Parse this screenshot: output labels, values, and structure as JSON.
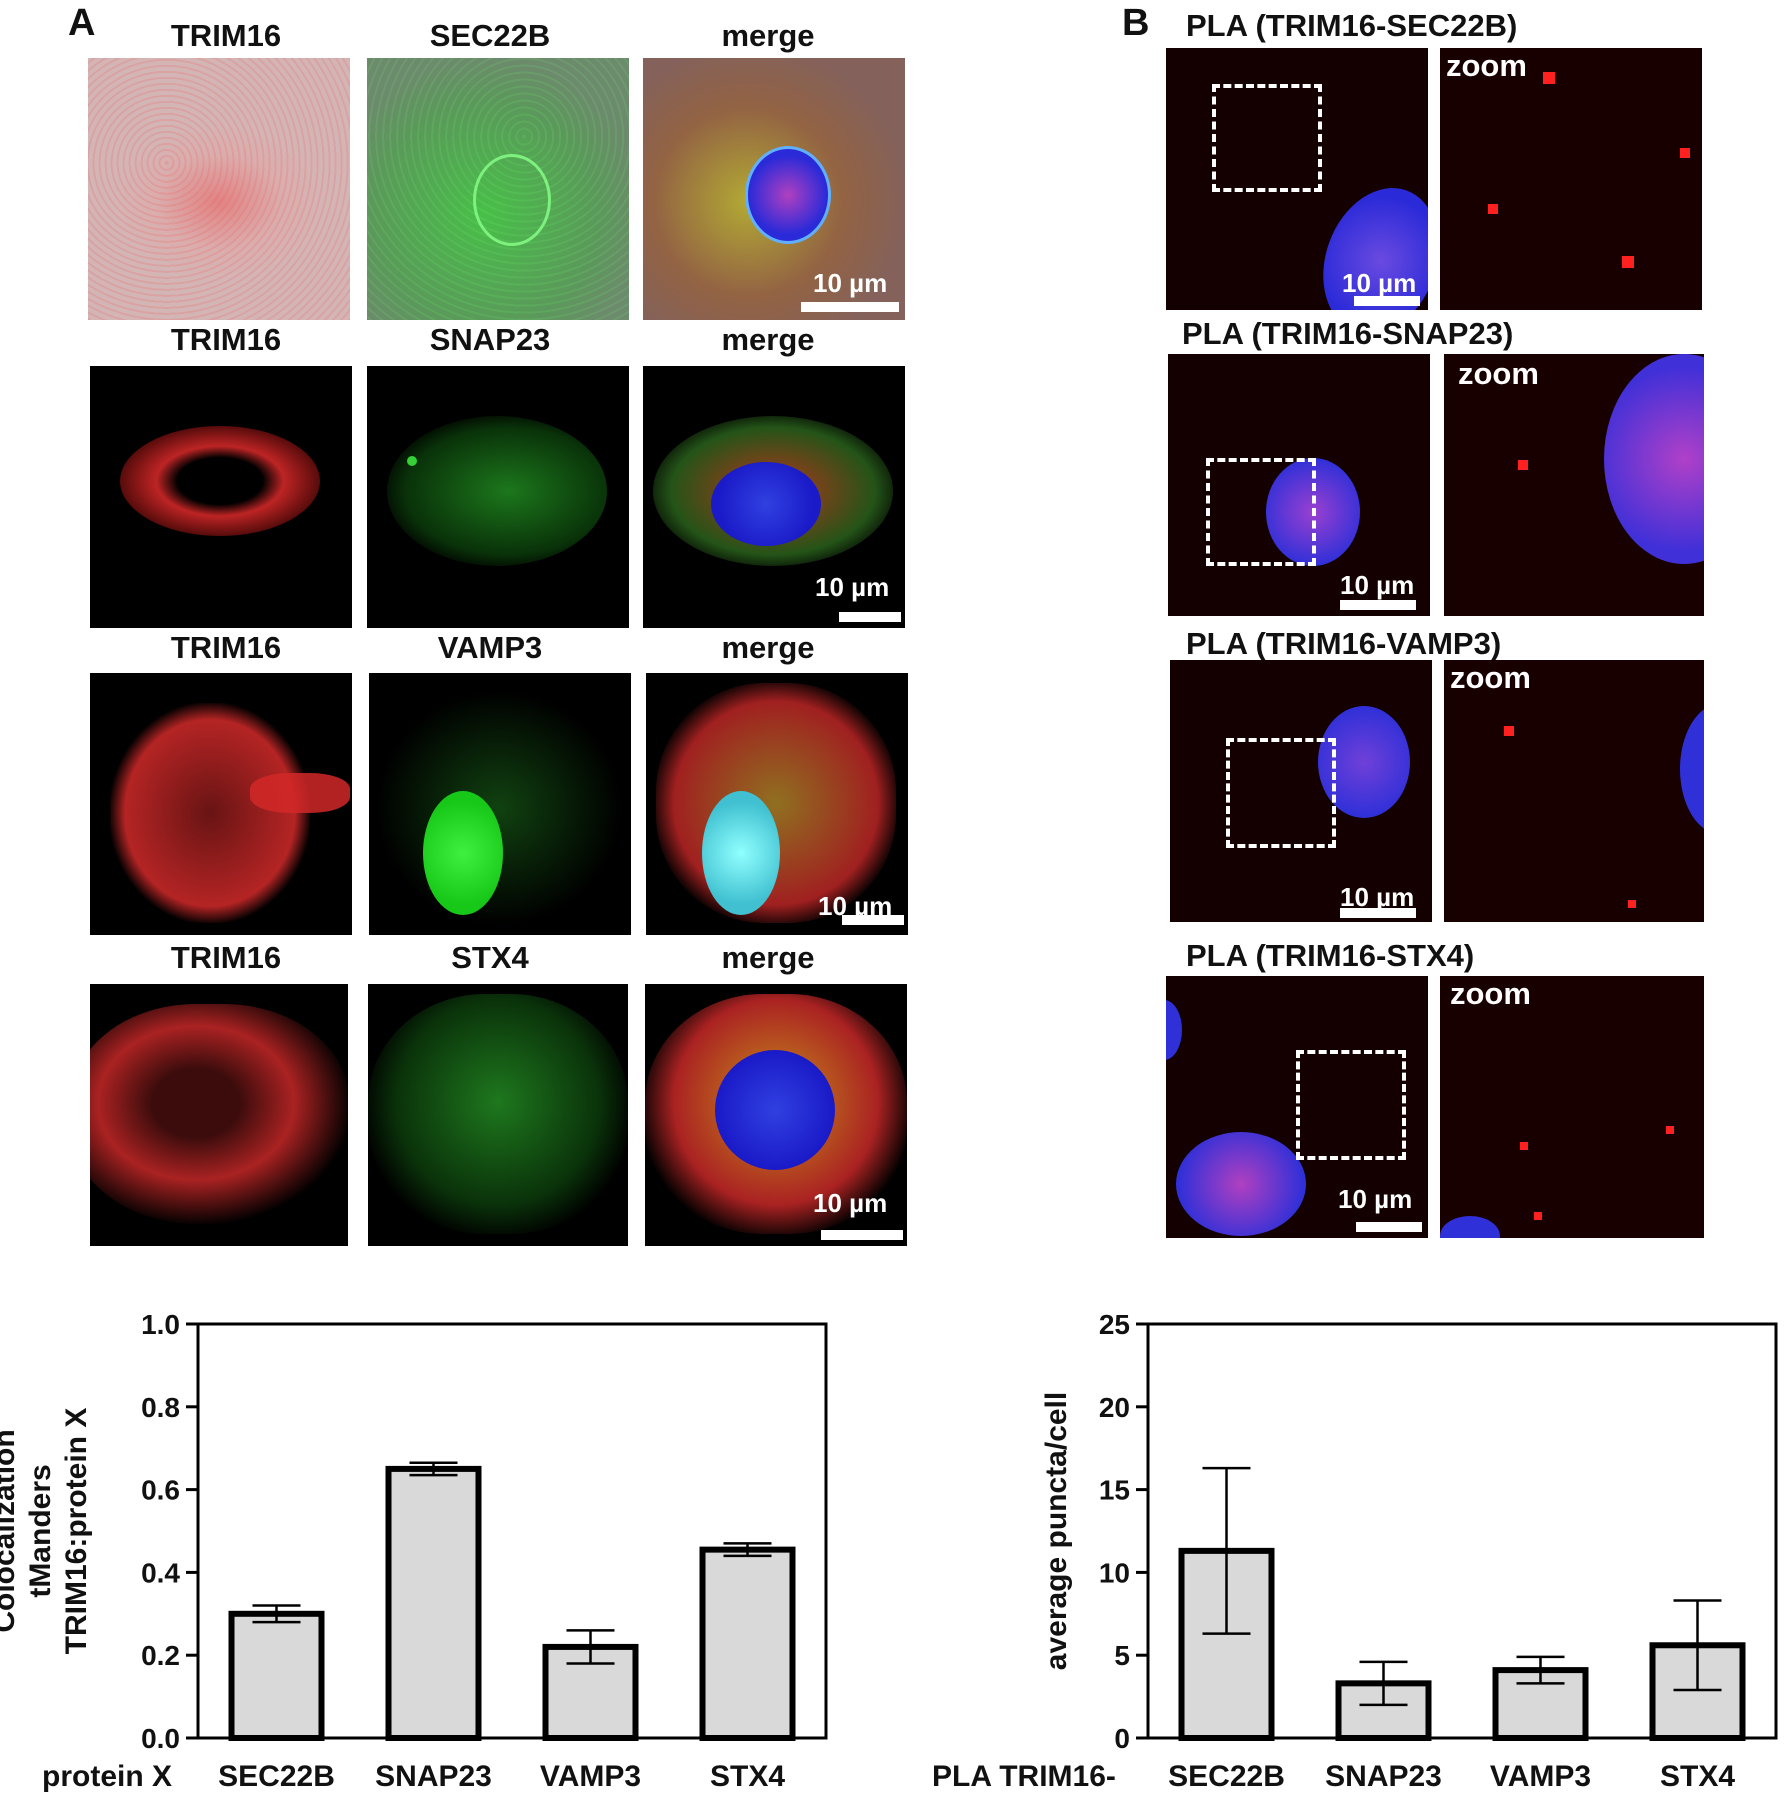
{
  "panelA": {
    "letter": "A",
    "rows": [
      {
        "col1": "TRIM16",
        "col2": "SEC22B",
        "col3": "merge",
        "scale": "10 µm"
      },
      {
        "col1": "TRIM16",
        "col2": "SNAP23",
        "col3": "merge",
        "scale": "10 µm"
      },
      {
        "col1": "TRIM16",
        "col2": "VAMP3",
        "col3": "merge",
        "scale": "10 µm"
      },
      {
        "col1": "TRIM16",
        "col2": "STX4",
        "col3": "merge",
        "scale": "10 µm"
      }
    ]
  },
  "panelB": {
    "letter": "B",
    "rows": [
      {
        "title": "PLA (TRIM16-SEC22B)",
        "zoom": "zoom",
        "scale": "10 µm"
      },
      {
        "title": "PLA (TRIM16-SNAP23)",
        "zoom": "zoom",
        "scale": "10 µm"
      },
      {
        "title": "PLA (TRIM16-VAMP3)",
        "zoom": "zoom",
        "scale": "10 µm"
      },
      {
        "title": "PLA (TRIM16-STX4)",
        "zoom": "zoom",
        "scale": "10 µm"
      }
    ]
  },
  "colors": {
    "red_channel": "#c81818",
    "green_channel": "#22b022",
    "nucleus_blue": "#2a2ad8",
    "bar_fill": "#d9d9d9",
    "bar_stroke": "#000000"
  },
  "chart_data": [
    {
      "type": "bar",
      "ylabel_lines": [
        "Colocalization",
        "tManders",
        "TRIM16:protein X"
      ],
      "xlabel_prefix": "protein X",
      "categories": [
        "SEC22B",
        "SNAP23",
        "VAMP3",
        "STX4"
      ],
      "values": [
        0.3,
        0.65,
        0.22,
        0.455
      ],
      "errors": [
        0.02,
        0.015,
        0.04,
        0.015
      ],
      "ylim": [
        0.0,
        1.0
      ],
      "yticks": [
        "0.0",
        "0.2",
        "0.4",
        "0.6",
        "0.8",
        "1.0"
      ],
      "grid": false
    },
    {
      "type": "bar",
      "ylabel_lines": [
        "average puncta/cell"
      ],
      "xlabel_prefix": "PLA TRIM16-",
      "categories": [
        "SEC22B",
        "SNAP23",
        "VAMP3",
        "STX4"
      ],
      "values": [
        11.3,
        3.3,
        4.1,
        5.6
      ],
      "errors": [
        5.0,
        1.3,
        0.8,
        2.7
      ],
      "ylim": [
        0,
        25
      ],
      "yticks": [
        "0",
        "5",
        "10",
        "15",
        "20",
        "25"
      ],
      "grid": false
    }
  ]
}
